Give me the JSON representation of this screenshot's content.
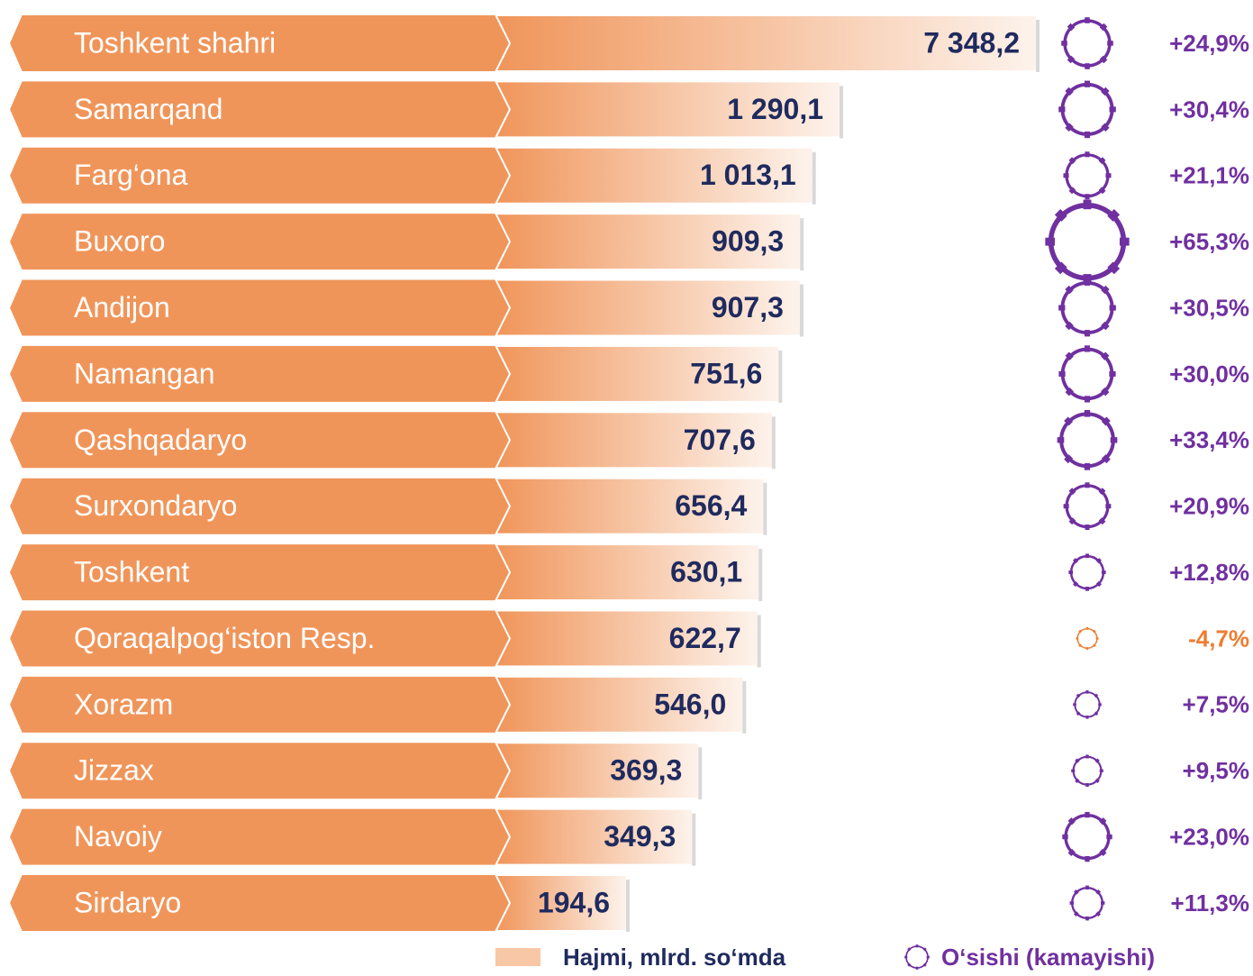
{
  "chart_data": {
    "type": "bar",
    "orientation": "horizontal",
    "xscale": "log",
    "categories": [
      "Toshkent  shahri",
      "Samarqand",
      "Farg‘ona",
      "Buxoro",
      "Andijon",
      "Namangan",
      "Qashqadaryo",
      "Surxondaryo",
      "Toshkent",
      "Qoraqalpog‘iston Resp.",
      "Xorazm",
      "Jizzax",
      "Navoiy",
      "Sirdaryo"
    ],
    "series": [
      {
        "name": "Hajmi, mlrd. so‘mda",
        "color": "#f0955a",
        "values": [
          7348.2,
          1290.1,
          1013.1,
          909.3,
          907.3,
          751.6,
          707.6,
          656.4,
          630.1,
          622.7,
          546.0,
          369.3,
          349.3,
          194.6
        ],
        "value_labels": [
          "7 348,2",
          "1 290,1",
          "1 013,1",
          "909,3",
          "907,3",
          "751,6",
          "707,6",
          "656,4",
          "630,1",
          "622,7",
          "546,0",
          "369,3",
          "349,3",
          "194,6"
        ]
      },
      {
        "name": "O‘sishi (kamayishi)",
        "color": "#7030a0",
        "negative_color": "#ed7d31",
        "values": [
          24.9,
          30.4,
          21.1,
          65.3,
          30.5,
          30.0,
          33.4,
          20.9,
          12.8,
          -4.7,
          7.5,
          9.5,
          23.0,
          11.3
        ],
        "value_labels": [
          "+24,9%",
          "+30,4%",
          "+21,1%",
          "+65,3%",
          "+30,5%",
          "+30,0%",
          "+33,4%",
          "+20,9%",
          "+12,8%",
          "-4,7%",
          "+7,5%",
          "+9,5%",
          "+23,0%",
          "+11,3%"
        ]
      }
    ]
  }
}
